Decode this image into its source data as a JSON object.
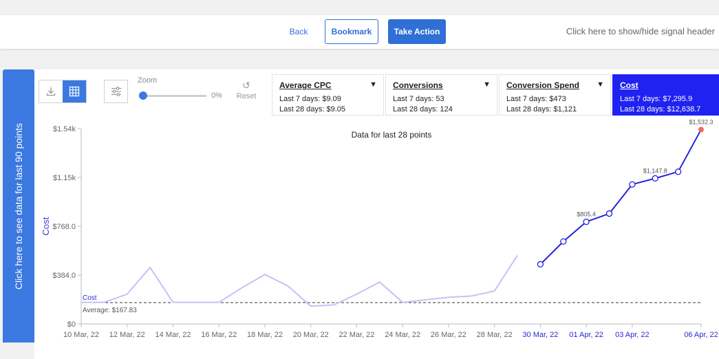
{
  "header": {
    "back_label": "Back",
    "bookmark_label": "Bookmark",
    "take_action_label": "Take Action",
    "signal_header_link": "Click here to show/hide signal header"
  },
  "side_tab": {
    "label": "Click here to see data for last 90 points"
  },
  "toolbar": {
    "download_icon": "download-icon",
    "table_icon": "table-grid-icon",
    "settings_icon": "sliders-icon",
    "zoom_label": "Zoom",
    "zoom_value": "0%",
    "zoom_level": 0,
    "reset_label": "Reset",
    "reset_icon": "refresh-icon"
  },
  "metrics": [
    {
      "title": "Average CPC",
      "last7": "Last 7 days: $9.09",
      "last28": "Last 28 days: $9.05",
      "selected": false
    },
    {
      "title": "Conversions",
      "last7": "Last 7 days: 53",
      "last28": "Last 28 days: 124",
      "selected": false
    },
    {
      "title": "Conversion Spend",
      "last7": "Last 7 days: $473",
      "last28": "Last 28 days: $1,121",
      "selected": false
    },
    {
      "title": "Cost",
      "last7": "Last 7 days: $7,295.9",
      "last28": "Last 28 days: $12,638.7",
      "selected": true
    }
  ],
  "colors": {
    "accent": "#3b78e0",
    "selected_metric": "#1f22f0",
    "line_recent": "#2222e0",
    "line_past": "#c4c2f4",
    "last_point": "#ef6a6a",
    "average_line": "#333333"
  },
  "chart_data": {
    "type": "line",
    "title": "Data for last 28 points",
    "ylabel": "Cost",
    "ylim": [
      0,
      1540
    ],
    "y_ticks": [
      "$0",
      "$384.0",
      "$768.0",
      "$1.15k",
      "$1.54k"
    ],
    "x_tick_labels": [
      "10 Mar, 22",
      "12 Mar, 22",
      "14 Mar, 22",
      "16 Mar, 22",
      "18 Mar, 22",
      "20 Mar, 22",
      "22 Mar, 22",
      "24 Mar, 22",
      "26 Mar, 22",
      "28 Mar, 22",
      "30 Mar, 22",
      "01 Apr, 22",
      "03 Apr, 22",
      "06 Apr, 22"
    ],
    "x": [
      "10 Mar, 22",
      "11 Mar, 22",
      "12 Mar, 22",
      "13 Mar, 22",
      "14 Mar, 22",
      "15 Mar, 22",
      "16 Mar, 22",
      "17 Mar, 22",
      "18 Mar, 22",
      "19 Mar, 22",
      "20 Mar, 22",
      "21 Mar, 22",
      "22 Mar, 22",
      "23 Mar, 22",
      "24 Mar, 22",
      "25 Mar, 22",
      "26 Mar, 22",
      "27 Mar, 22",
      "28 Mar, 22",
      "29 Mar, 22",
      "30 Mar, 22",
      "31 Mar, 22",
      "01 Apr, 22",
      "02 Apr, 22",
      "03 Apr, 22",
      "04 Apr, 22",
      "05 Apr, 22",
      "06 Apr, 22"
    ],
    "series": [
      {
        "name": "Cost",
        "values": [
          170,
          170,
          235,
          445,
          170,
          170,
          170,
          285,
          390,
          300,
          140,
          150,
          235,
          330,
          170,
          190,
          210,
          220,
          260,
          540,
          470,
          650,
          805.4,
          870,
          1100,
          1147.8,
          1200,
          1532.3
        ]
      }
    ],
    "recent_points": 8,
    "highlighted_labels": [
      {
        "index": 22,
        "text": "$805.4"
      },
      {
        "index": 25,
        "text": "$1,147.8"
      },
      {
        "index": 27,
        "text": "$1,532.3"
      }
    ],
    "average": {
      "value": 167.83,
      "label": "Average: $167.83",
      "series_label": "Cost"
    }
  }
}
